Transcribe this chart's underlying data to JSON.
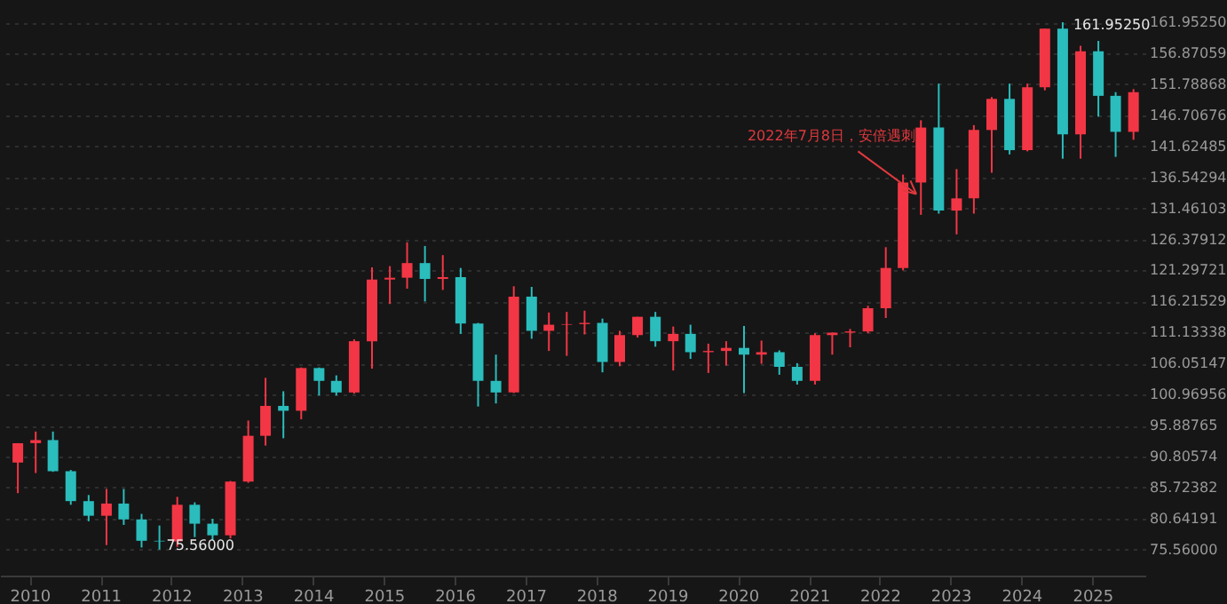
{
  "chart_data": {
    "type": "candlestick",
    "x": [
      "2009-11",
      "2010-02",
      "2010-05",
      "2010-08",
      "2010-11",
      "2011-02",
      "2011-05",
      "2011-08",
      "2011-11",
      "2012-02",
      "2012-05",
      "2012-08",
      "2012-11",
      "2013-02",
      "2013-05",
      "2013-08",
      "2013-11",
      "2014-02",
      "2014-05",
      "2014-08",
      "2014-11",
      "2015-02",
      "2015-05",
      "2015-08",
      "2015-11",
      "2016-02",
      "2016-05",
      "2016-08",
      "2016-11",
      "2017-02",
      "2017-05",
      "2017-08",
      "2017-11",
      "2018-02",
      "2018-05",
      "2018-08",
      "2018-11",
      "2019-02",
      "2019-05",
      "2019-08",
      "2019-11",
      "2020-02",
      "2020-05",
      "2020-08",
      "2020-11",
      "2021-02",
      "2021-05",
      "2021-08",
      "2021-11",
      "2022-02",
      "2022-05",
      "2022-08",
      "2022-11",
      "2023-02",
      "2023-05",
      "2023-08",
      "2023-11",
      "2024-02",
      "2024-05",
      "2024-08",
      "2024-11",
      "2025-02",
      "2025-05",
      "2025-08"
    ],
    "ohlc": [
      [
        89.8,
        93.0,
        84.8,
        93.0
      ],
      [
        93.0,
        94.9,
        88.1,
        93.5
      ],
      [
        93.5,
        94.9,
        88.3,
        88.4
      ],
      [
        88.4,
        88.6,
        82.9,
        83.5
      ],
      [
        83.5,
        84.5,
        80.2,
        81.1
      ],
      [
        81.1,
        85.5,
        76.3,
        83.1
      ],
      [
        83.1,
        85.5,
        79.6,
        80.5
      ],
      [
        80.5,
        81.4,
        75.9,
        77.0
      ],
      [
        77.0,
        79.5,
        75.56,
        76.9
      ],
      [
        76.9,
        84.2,
        76.0,
        82.9
      ],
      [
        82.9,
        83.3,
        77.6,
        79.8
      ],
      [
        79.8,
        80.6,
        77.1,
        77.9
      ],
      [
        77.9,
        86.8,
        77.4,
        86.7
      ],
      [
        86.7,
        96.7,
        86.5,
        94.2
      ],
      [
        94.2,
        103.7,
        92.6,
        99.1
      ],
      [
        99.1,
        101.5,
        93.8,
        98.3
      ],
      [
        98.3,
        105.4,
        96.9,
        105.3
      ],
      [
        105.3,
        105.4,
        100.8,
        103.2
      ],
      [
        103.2,
        104.1,
        100.8,
        101.3
      ],
      [
        101.3,
        110.0,
        101.1,
        109.7
      ],
      [
        109.7,
        121.8,
        105.2,
        119.8
      ],
      [
        119.8,
        122.0,
        115.8,
        120.1
      ],
      [
        120.1,
        125.9,
        118.3,
        122.5
      ],
      [
        122.5,
        125.3,
        116.2,
        119.9
      ],
      [
        119.9,
        123.8,
        118.1,
        120.2
      ],
      [
        120.2,
        121.7,
        110.9,
        112.6
      ],
      [
        112.6,
        112.7,
        99.0,
        103.2
      ],
      [
        103.2,
        107.5,
        99.5,
        101.3
      ],
      [
        101.3,
        118.7,
        101.2,
        117.0
      ],
      [
        117.0,
        118.6,
        110.1,
        111.4
      ],
      [
        111.4,
        114.4,
        108.1,
        112.4
      ],
      [
        112.4,
        114.5,
        107.3,
        112.5
      ],
      [
        112.5,
        114.7,
        110.8,
        112.7
      ],
      [
        112.7,
        113.4,
        104.6,
        106.3
      ],
      [
        106.3,
        111.4,
        105.6,
        110.7
      ],
      [
        110.7,
        113.7,
        110.3,
        113.7
      ],
      [
        113.7,
        114.5,
        108.8,
        109.7
      ],
      [
        109.7,
        112.1,
        104.9,
        110.9
      ],
      [
        110.9,
        112.4,
        106.8,
        107.9
      ],
      [
        107.9,
        109.3,
        104.5,
        108.1
      ],
      [
        108.1,
        109.7,
        105.7,
        108.6
      ],
      [
        108.6,
        112.2,
        101.2,
        107.5
      ],
      [
        107.5,
        109.8,
        106.0,
        107.9
      ],
      [
        107.9,
        108.2,
        104.2,
        105.5
      ],
      [
        105.5,
        106.1,
        102.6,
        103.2
      ],
      [
        103.2,
        111.0,
        102.6,
        110.7
      ],
      [
        110.7,
        111.1,
        107.5,
        111.1
      ],
      [
        111.1,
        111.7,
        108.7,
        111.3
      ],
      [
        111.3,
        115.5,
        111.0,
        115.1
      ],
      [
        115.1,
        125.1,
        113.5,
        121.7
      ],
      [
        121.7,
        137.0,
        121.3,
        135.7
      ],
      [
        135.7,
        145.9,
        130.4,
        144.7
      ],
      [
        144.7,
        151.9,
        130.6,
        131.1
      ],
      [
        131.1,
        137.9,
        127.2,
        133.1
      ],
      [
        133.1,
        145.1,
        130.6,
        144.3
      ],
      [
        144.3,
        149.7,
        137.3,
        149.4
      ],
      [
        149.4,
        151.9,
        140.3,
        141.0
      ],
      [
        141.0,
        151.9,
        140.8,
        151.3
      ],
      [
        151.3,
        160.9,
        150.8,
        160.9
      ],
      [
        160.9,
        161.9525,
        139.6,
        143.6
      ],
      [
        143.6,
        158.1,
        139.6,
        157.2
      ],
      [
        157.2,
        158.9,
        146.5,
        149.9
      ],
      [
        149.9,
        150.5,
        139.9,
        144.0
      ],
      [
        144.0,
        151.0,
        142.7,
        150.5
      ]
    ],
    "colors": [
      "#f23645",
      "#f23645",
      "#2bbcbc",
      "#2bbcbc",
      "#2bbcbc",
      "#f23645",
      "#2bbcbc",
      "#2bbcbc",
      "#2bbcbc",
      "#f23645",
      "#2bbcbc",
      "#2bbcbc",
      "#f23645",
      "#f23645",
      "#f23645",
      "#2bbcbc",
      "#f23645",
      "#2bbcbc",
      "#2bbcbc",
      "#f23645",
      "#f23645",
      "#f23645",
      "#f23645",
      "#2bbcbc",
      "#f23645",
      "#2bbcbc",
      "#2bbcbc",
      "#2bbcbc",
      "#f23645",
      "#2bbcbc",
      "#f23645",
      "#f23645",
      "#f23645",
      "#2bbcbc",
      "#f23645",
      "#f23645",
      "#2bbcbc",
      "#f23645",
      "#2bbcbc",
      "#f23645",
      "#f23645",
      "#2bbcbc",
      "#f23645",
      "#2bbcbc",
      "#2bbcbc",
      "#f23645",
      "#f23645",
      "#f23645",
      "#f23645",
      "#f23645",
      "#f23645",
      "#f23645",
      "#2bbcbc",
      "#f23645",
      "#f23645",
      "#f23645",
      "#2bbcbc",
      "#f23645",
      "#f23645",
      "#2bbcbc",
      "#f23645",
      "#2bbcbc",
      "#2bbcbc",
      "#f23645"
    ],
    "xlim": [
      "2009-08",
      "2025-10"
    ],
    "xticks": [
      "2010",
      "2011",
      "2012",
      "2013",
      "2014",
      "2015",
      "2016",
      "2017",
      "2018",
      "2019",
      "2020",
      "2021",
      "2022",
      "2023",
      "2024",
      "2025"
    ],
    "ylim": [
      71.3,
      165.6
    ],
    "yticks": [
      {
        "value": 75.56,
        "label": "75.56000"
      },
      {
        "value": 80.64191,
        "label": "80.64191"
      },
      {
        "value": 85.72382,
        "label": "85.72382"
      },
      {
        "value": 90.80574,
        "label": "90.80574"
      },
      {
        "value": 95.88765,
        "label": "95.88765"
      },
      {
        "value": 100.96956,
        "label": "100.96956"
      },
      {
        "value": 106.05147,
        "label": "106.05147"
      },
      {
        "value": 111.13338,
        "label": "111.13338"
      },
      {
        "value": 116.21529,
        "label": "116.21529"
      },
      {
        "value": 121.29721,
        "label": "121.29721"
      },
      {
        "value": 126.37912,
        "label": "126.37912"
      },
      {
        "value": 131.46103,
        "label": "131.46103"
      },
      {
        "value": 136.54294,
        "label": "136.54294"
      },
      {
        "value": 141.62485,
        "label": "141.62485"
      },
      {
        "value": 146.70676,
        "label": "146.70676"
      },
      {
        "value": 151.78868,
        "label": "151.78868"
      },
      {
        "value": 156.87059,
        "label": "156.87059"
      },
      {
        "value": 161.9525,
        "label": "161.95250"
      }
    ],
    "grid": "y",
    "annotations": [
      {
        "text": "161.95250",
        "x": "2024-08",
        "y": 161.9525
      },
      {
        "text": "75.56000",
        "x": "2011-11",
        "y": 75.56
      },
      {
        "text": "2022年7月8日，安倍遇刺",
        "x": "2022-07-08",
        "y": 133.8
      }
    ]
  }
}
